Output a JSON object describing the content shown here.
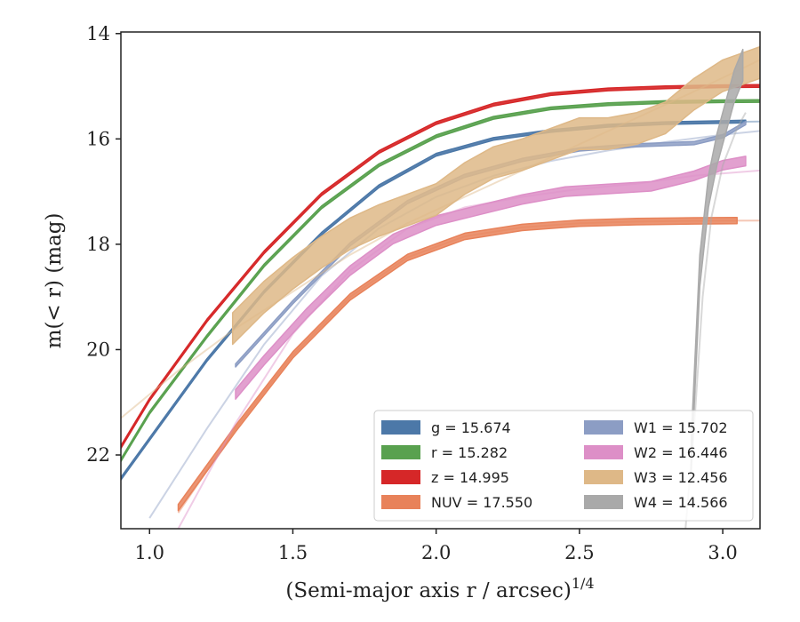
{
  "chart_data": {
    "type": "line",
    "xlabel": "(Semi-major axis r / arcsec)",
    "xlabel_sup": "1/4",
    "ylabel": "m(< r) (mag)",
    "xlim": [
      0.9,
      3.13
    ],
    "ylim": [
      23.4,
      13.97
    ],
    "y_inverted": true,
    "xticks": [
      1.0,
      1.5,
      2.0,
      2.5,
      3.0
    ],
    "xtick_labels": [
      "1.0",
      "1.5",
      "2.0",
      "2.5",
      "3.0"
    ],
    "yticks": [
      14,
      16,
      18,
      20,
      22
    ],
    "ytick_labels": [
      "14",
      "16",
      "18",
      "20",
      "22"
    ],
    "legend_position": "lower-right",
    "legend_columns": 2,
    "series": [
      {
        "name": "g = 15.674",
        "legend_label": "g = 15.674",
        "color": "#4c78a8",
        "band_width": 0.05,
        "model_x": [
          0.9,
          1.0,
          1.2,
          1.4,
          1.6,
          1.8,
          2.0,
          2.2,
          2.4,
          2.6,
          2.8,
          3.0,
          3.13
        ],
        "model_y": [
          22.45,
          21.7,
          20.2,
          18.9,
          17.8,
          16.9,
          16.3,
          16.0,
          15.85,
          15.75,
          15.7,
          15.68,
          15.67
        ],
        "data_x": [
          0.9,
          1.0,
          1.2,
          1.4,
          1.6,
          1.8,
          2.0,
          2.2,
          2.4,
          2.6,
          2.8,
          3.0,
          3.08
        ],
        "data_y": [
          22.45,
          21.7,
          20.2,
          18.9,
          17.8,
          16.9,
          16.3,
          16.0,
          15.85,
          15.75,
          15.7,
          15.68,
          15.67
        ]
      },
      {
        "name": "r = 15.282",
        "legend_label": "r = 15.282",
        "color": "#59a14f",
        "band_width": 0.05,
        "model_x": [
          0.9,
          1.0,
          1.2,
          1.4,
          1.6,
          1.8,
          2.0,
          2.2,
          2.4,
          2.6,
          2.8,
          3.0,
          3.13
        ],
        "model_y": [
          22.1,
          21.2,
          19.75,
          18.4,
          17.3,
          16.5,
          15.95,
          15.6,
          15.42,
          15.34,
          15.3,
          15.285,
          15.28
        ],
        "data_x": [
          0.9,
          1.0,
          1.2,
          1.4,
          1.6,
          1.8,
          2.0,
          2.2,
          2.4,
          2.6,
          2.8,
          3.0,
          3.13
        ],
        "data_y": [
          22.1,
          21.2,
          19.75,
          18.4,
          17.3,
          16.5,
          15.95,
          15.6,
          15.42,
          15.34,
          15.3,
          15.285,
          15.28
        ]
      },
      {
        "name": "z = 14.995",
        "legend_label": "z = 14.995",
        "color": "#d62728",
        "band_width": 0.05,
        "model_x": [
          0.9,
          1.0,
          1.2,
          1.4,
          1.6,
          1.8,
          2.0,
          2.2,
          2.4,
          2.6,
          2.8,
          3.0,
          3.13
        ],
        "model_y": [
          21.85,
          20.95,
          19.45,
          18.15,
          17.05,
          16.25,
          15.7,
          15.35,
          15.15,
          15.06,
          15.02,
          15.0,
          14.995
        ],
        "data_x": [
          0.9,
          1.0,
          1.2,
          1.4,
          1.6,
          1.8,
          2.0,
          2.2,
          2.4,
          2.6,
          2.8,
          3.0,
          3.13
        ],
        "data_y": [
          21.85,
          20.95,
          19.45,
          18.15,
          17.05,
          16.25,
          15.7,
          15.35,
          15.15,
          15.06,
          15.02,
          15.0,
          14.995
        ]
      },
      {
        "name": "NUV = 17.550",
        "legend_label": "NUV = 17.550",
        "color": "#e8825a",
        "band_width": 0.12,
        "model_x": [
          1.1,
          1.3,
          1.5,
          1.7,
          1.9,
          2.1,
          2.3,
          2.5,
          2.7,
          2.9,
          3.13
        ],
        "model_y": [
          23.1,
          21.5,
          20.1,
          19.0,
          18.25,
          17.85,
          17.68,
          17.6,
          17.57,
          17.555,
          17.55
        ],
        "data_x": [
          1.1,
          1.3,
          1.5,
          1.7,
          1.9,
          2.1,
          2.3,
          2.5,
          2.7,
          2.9,
          3.05
        ],
        "data_y": [
          23.0,
          21.5,
          20.1,
          19.0,
          18.25,
          17.85,
          17.68,
          17.6,
          17.57,
          17.555,
          17.55
        ]
      },
      {
        "name": "W1 = 15.702",
        "legend_label": "W1 = 15.702",
        "color": "#8c9dc4",
        "band_width": 0.06,
        "model_x": [
          1.0,
          1.2,
          1.4,
          1.6,
          1.8,
          2.0,
          2.2,
          2.4,
          2.6,
          2.8,
          3.0,
          3.13
        ],
        "model_y": [
          23.2,
          21.5,
          19.9,
          18.6,
          17.7,
          17.1,
          16.7,
          16.42,
          16.22,
          16.06,
          15.92,
          15.85
        ],
        "data_x": [
          1.3,
          1.5,
          1.7,
          1.9,
          2.1,
          2.3,
          2.5,
          2.7,
          2.9,
          3.0,
          3.08
        ],
        "data_y": [
          20.3,
          19.1,
          18.0,
          17.2,
          16.7,
          16.4,
          16.2,
          16.12,
          16.08,
          15.95,
          15.7
        ]
      },
      {
        "name": "W2 = 16.446",
        "legend_label": "W2 = 16.446",
        "color": "#dd8fc7",
        "band_width": 0.18,
        "model_x": [
          1.1,
          1.3,
          1.5,
          1.7,
          1.9,
          2.1,
          2.3,
          2.5,
          2.7,
          2.9,
          3.13
        ],
        "model_y": [
          23.4,
          21.4,
          19.7,
          18.5,
          17.7,
          17.3,
          17.1,
          16.95,
          16.85,
          16.7,
          16.6
        ],
        "data_x": [
          1.3,
          1.4,
          1.55,
          1.7,
          1.85,
          2.0,
          2.15,
          2.3,
          2.45,
          2.6,
          2.75,
          2.9,
          3.0,
          3.08
        ],
        "data_y": [
          20.85,
          20.2,
          19.3,
          18.5,
          17.9,
          17.55,
          17.35,
          17.15,
          17.0,
          16.95,
          16.9,
          16.7,
          16.5,
          16.42
        ]
      },
      {
        "name": "W3 = 12.456",
        "legend_label": "W3 = 12.456",
        "color": "#deb887",
        "band_width": 0.6,
        "model_x": [
          0.9,
          1.1,
          1.3,
          1.5,
          1.7,
          1.9,
          2.1,
          2.3,
          2.5,
          2.7,
          2.9,
          3.13
        ],
        "model_y": [
          21.3,
          20.4,
          19.6,
          18.9,
          18.2,
          17.6,
          17.1,
          16.6,
          16.1,
          15.6,
          15.1,
          14.5
        ],
        "data_x": [
          1.29,
          1.4,
          1.5,
          1.6,
          1.7,
          1.8,
          1.9,
          2.0,
          2.1,
          2.2,
          2.3,
          2.4,
          2.5,
          2.6,
          2.7,
          2.8,
          2.9,
          3.0,
          3.13
        ],
        "data_y": [
          19.6,
          19.0,
          18.55,
          18.15,
          17.8,
          17.55,
          17.35,
          17.15,
          16.75,
          16.45,
          16.3,
          16.1,
          15.9,
          15.9,
          15.8,
          15.6,
          15.15,
          14.8,
          14.55
        ]
      },
      {
        "name": "W4 = 14.566",
        "legend_label": "W4 = 14.566",
        "color": "#a9a9a9",
        "band_width": 0.6,
        "model_x": [
          2.87,
          2.9,
          2.93,
          2.96,
          3.0,
          3.05,
          3.08
        ],
        "model_y": [
          23.4,
          21.5,
          19.0,
          17.5,
          16.5,
          15.8,
          15.5
        ],
        "data_x": [
          2.89,
          2.92,
          2.95,
          2.98,
          3.01,
          3.04,
          3.07
        ],
        "data_y": [
          22.0,
          18.5,
          17.0,
          16.2,
          15.6,
          15.0,
          14.6
        ]
      }
    ]
  }
}
